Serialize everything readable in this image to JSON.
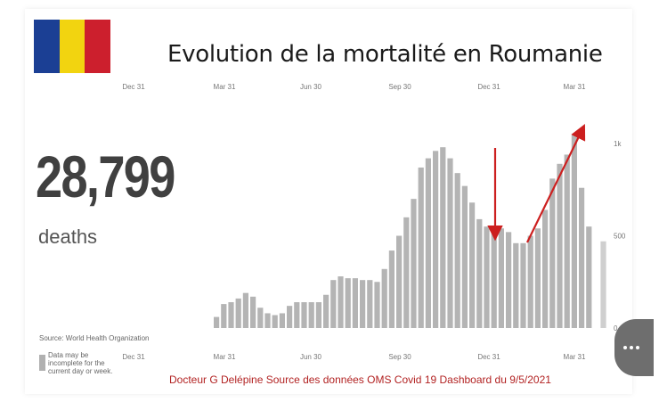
{
  "title": "Evolution de la mortalité en Roumanie",
  "flag": {
    "colors": [
      "#1b3f94",
      "#f2d410",
      "#cc1f2d"
    ]
  },
  "stat": {
    "value": "28,799",
    "unit": "deaths"
  },
  "source": "Source: World Health Organization",
  "note": "Data may be incomplete for the current day or week.",
  "credit": "Docteur G Delépine Source des données OMS Covid 19 Dashboard du 9/5/2021",
  "chart_data": {
    "type": "bar",
    "top_ticks": [
      "Dec 31",
      "Mar 31",
      "Jun 30",
      "Sep 30",
      "Dec 31",
      "Mar 31"
    ],
    "bottom_ticks": [
      "Dec 31",
      "Mar 31",
      "Jun 30",
      "Sep 30",
      "Dec 31",
      "Mar 31"
    ],
    "y_ticks": [
      {
        "value": 0,
        "label": "0"
      },
      {
        "value": 500,
        "label": "500"
      },
      {
        "value": 1000,
        "label": "1k"
      }
    ],
    "ylim": [
      0,
      1150
    ],
    "bar_color": "#b4b4b4",
    "annotation_color": "#cc1f1f",
    "values": [
      60,
      130,
      140,
      160,
      190,
      170,
      110,
      80,
      70,
      80,
      120,
      140,
      140,
      140,
      140,
      180,
      260,
      280,
      270,
      270,
      260,
      260,
      250,
      320,
      420,
      500,
      600,
      700,
      870,
      920,
      960,
      980,
      920,
      840,
      770,
      680,
      590,
      550,
      540,
      540,
      520,
      460,
      460,
      500,
      540,
      640,
      810,
      890,
      940,
      1050,
      760,
      550
    ]
  }
}
